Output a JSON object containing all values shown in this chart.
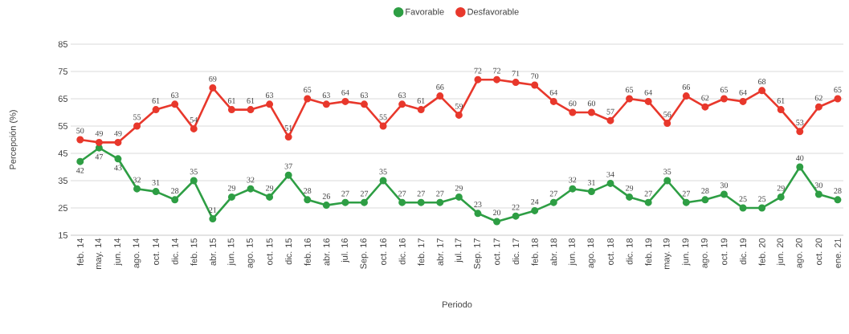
{
  "chart_data": {
    "type": "line",
    "xlabel": "Periodo",
    "ylabel": "Percepción (%)",
    "categories": [
      "feb. 14",
      "may. 14",
      "jun. 14",
      "ago. 14",
      "oct. 14",
      "dic. 14",
      "feb. 15",
      "abr. 15",
      "jun. 15",
      "ago. 15",
      "oct. 15",
      "dic. 15",
      "feb. 16",
      "abr. 16",
      "jul. 16",
      "Sep. 16",
      "oct. 16",
      "dic. 16",
      "feb. 17",
      "abr. 17",
      "jul. 17",
      "Sep. 17",
      "oct. 17",
      "dic. 17",
      "feb. 18",
      "abr. 18",
      "jun. 18",
      "ago. 18",
      "oct. 18",
      "dic. 18",
      "feb. 19",
      "may. 19",
      "jun. 19",
      "ago. 19",
      "oct. 19",
      "dic. 19",
      "feb. 20",
      "jun. 20",
      "ago. 20",
      "oct. 20",
      "ene. 21"
    ],
    "series": [
      {
        "name": "Favorable",
        "color": "#2e9e44",
        "values": [
          42,
          47,
          43,
          32,
          31,
          28,
          35,
          21,
          29,
          32,
          29,
          37,
          28,
          26,
          27,
          27,
          35,
          27,
          27,
          27,
          29,
          23,
          20,
          22,
          24,
          27,
          32,
          31,
          34,
          29,
          27,
          35,
          27,
          28,
          30,
          25,
          25,
          29,
          40,
          30,
          28
        ]
      },
      {
        "name": "Desfavorable",
        "color": "#e8382c",
        "values": [
          50,
          49,
          49,
          55,
          61,
          63,
          54,
          69,
          61,
          61,
          63,
          51,
          65,
          63,
          64,
          63,
          55,
          63,
          61,
          66,
          59,
          72,
          72,
          71,
          70,
          64,
          60,
          60,
          57,
          65,
          64,
          56,
          66,
          62,
          65,
          64,
          68,
          61,
          53,
          62,
          65
        ]
      }
    ],
    "ylim": [
      15,
      85
    ],
    "yticks": [
      15,
      25,
      35,
      45,
      55,
      65,
      75,
      85
    ],
    "grid": "y",
    "legend": "top",
    "marker": "circle",
    "line_style": "solid",
    "data_labels": true
  }
}
